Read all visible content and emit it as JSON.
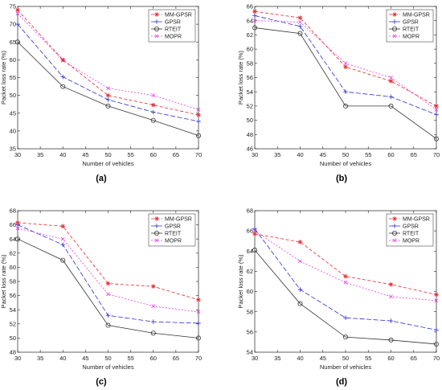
{
  "colors": {
    "MM-GPSR": "#e8262d",
    "GPSR": "#2b2fd6",
    "RTEIT": "#333333",
    "MOPR": "#e23fe6"
  },
  "chart_data": [
    {
      "panel": "(a)",
      "type": "line",
      "xlabel": "Number of vehicles",
      "ylabel": "Packet loss rate (%)",
      "xlim": [
        30,
        70
      ],
      "ylim": [
        35,
        75
      ],
      "xticks": [
        30,
        35,
        40,
        45,
        50,
        55,
        60,
        65,
        70
      ],
      "yticks": [
        35,
        40,
        45,
        50,
        55,
        60,
        65,
        70,
        75
      ],
      "x": [
        30,
        40,
        50,
        60,
        70
      ],
      "legend": "top-right",
      "grid": false,
      "series": [
        {
          "name": "MM-GPSR",
          "values": [
            74.0,
            60.0,
            50.0,
            47.3,
            44.5
          ]
        },
        {
          "name": "GPSR",
          "values": [
            70.0,
            55.2,
            48.8,
            45.3,
            42.7
          ]
        },
        {
          "name": "RTEIT",
          "values": [
            65.0,
            52.5,
            47.0,
            43.0,
            38.7
          ]
        },
        {
          "name": "MOPR",
          "values": [
            73.0,
            59.8,
            52.0,
            50.0,
            46.0
          ]
        }
      ]
    },
    {
      "panel": "(b)",
      "type": "line",
      "xlabel": "Number of vehicles",
      "ylabel": "Packet loss rate (%)",
      "xlim": [
        30,
        70
      ],
      "ylim": [
        46,
        66
      ],
      "xticks": [
        30,
        35,
        40,
        45,
        50,
        55,
        60,
        65,
        70
      ],
      "yticks": [
        46,
        48,
        50,
        52,
        54,
        56,
        58,
        60,
        62,
        64,
        66
      ],
      "x": [
        30,
        40,
        50,
        60,
        70
      ],
      "legend": "top-right",
      "grid": false,
      "series": [
        {
          "name": "MM-GPSR",
          "values": [
            65.3,
            64.4,
            57.5,
            55.5,
            52.0
          ]
        },
        {
          "name": "GPSR",
          "values": [
            64.7,
            63.2,
            54.0,
            53.3,
            50.8
          ]
        },
        {
          "name": "RTEIT",
          "values": [
            63.0,
            62.2,
            52.0,
            52.0,
            47.4
          ]
        },
        {
          "name": "MOPR",
          "values": [
            64.0,
            63.8,
            58.0,
            56.0,
            51.5
          ]
        }
      ]
    },
    {
      "panel": "(c)",
      "type": "line",
      "xlabel": "Number of vehicles",
      "ylabel": "Packet loss rate (%)",
      "xlim": [
        30,
        70
      ],
      "ylim": [
        48,
        68
      ],
      "xticks": [
        30,
        35,
        40,
        45,
        50,
        55,
        60,
        65,
        70
      ],
      "yticks": [
        48,
        50,
        52,
        54,
        56,
        58,
        60,
        62,
        64,
        66,
        68
      ],
      "x": [
        30,
        40,
        50,
        60,
        70
      ],
      "legend": "top-right",
      "grid": false,
      "series": [
        {
          "name": "MM-GPSR",
          "values": [
            66.3,
            65.8,
            57.7,
            57.3,
            55.4
          ]
        },
        {
          "name": "GPSR",
          "values": [
            66.0,
            63.2,
            53.2,
            52.3,
            52.1
          ]
        },
        {
          "name": "RTEIT",
          "values": [
            64.0,
            61.0,
            51.8,
            50.7,
            50.0
          ]
        },
        {
          "name": "MOPR",
          "values": [
            65.5,
            64.0,
            56.2,
            54.5,
            53.7
          ]
        }
      ]
    },
    {
      "panel": "(d)",
      "type": "line",
      "xlabel": "Number of vehicles",
      "ylabel": "Packet loss rate (%)",
      "xlim": [
        30,
        70
      ],
      "ylim": [
        54,
        68
      ],
      "xticks": [
        30,
        35,
        40,
        45,
        50,
        55,
        60,
        65,
        70
      ],
      "yticks": [
        54,
        56,
        58,
        60,
        62,
        64,
        66,
        68
      ],
      "x": [
        30,
        40,
        50,
        60,
        70
      ],
      "legend": "top-right",
      "grid": false,
      "series": [
        {
          "name": "MM-GPSR",
          "values": [
            65.7,
            64.9,
            61.5,
            60.7,
            59.7
          ]
        },
        {
          "name": "GPSR",
          "values": [
            66.2,
            60.2,
            57.4,
            57.1,
            56.2
          ]
        },
        {
          "name": "RTEIT",
          "values": [
            64.1,
            58.8,
            55.5,
            55.2,
            54.8
          ]
        },
        {
          "name": "MOPR",
          "values": [
            66.0,
            63.0,
            60.9,
            59.5,
            59.1
          ]
        }
      ]
    }
  ]
}
